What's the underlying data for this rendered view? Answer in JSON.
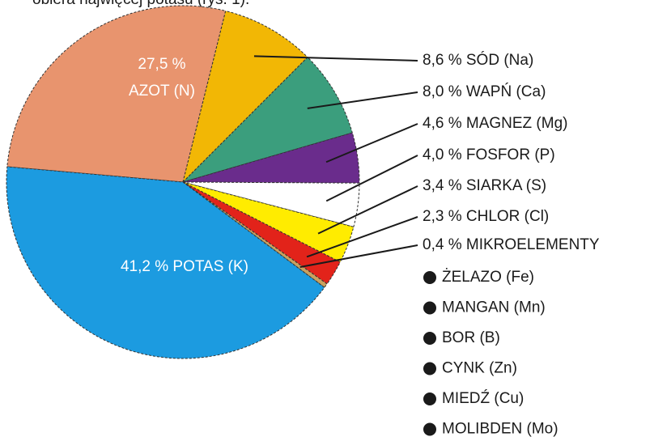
{
  "header_text": "obiera najwięcej potasu (rys. 1).",
  "chart_data": {
    "type": "pie",
    "categories": [
      "AZOT (N)",
      "SÓD (Na)",
      "WAPŃ (Ca)",
      "MAGNEZ (Mg)",
      "FOSFOR (P)",
      "SIARKA (S)",
      "CHLOR (Cl)",
      "MIKROELEMENTY",
      "POTAS (K)"
    ],
    "values": [
      27.5,
      8.6,
      8.0,
      4.6,
      4.0,
      3.4,
      2.3,
      0.4,
      41.2
    ],
    "value_labels": [
      "27,5 %",
      "8,6 %",
      "8,0 %",
      "4,6 %",
      "4,0 %",
      "3,4 %",
      "2,3 %",
      "0,4 %",
      "41,2 %"
    ],
    "colors": [
      "#e8946e",
      "#f2b705",
      "#3b9e7d",
      "#6a2c8c",
      "#ffffff",
      "#ffec00",
      "#e2231a",
      "#c9a15f",
      "#1c9be0"
    ],
    "sub_items": [
      "ŻELAZO (Fe)",
      "MANGAN (Mn)",
      "BOR (B)",
      "CYNK (Zn)",
      "MIEDŹ (Cu)",
      "MOLIBDEN (Mo)"
    ]
  }
}
